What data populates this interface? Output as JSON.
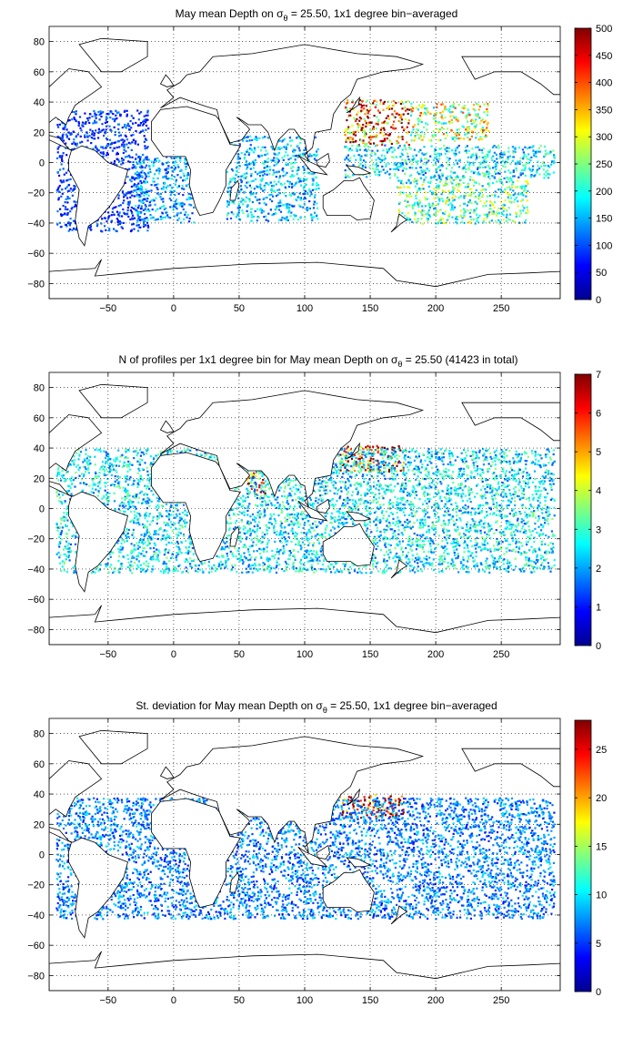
{
  "colorbar_palette": "jet",
  "continent_outline_color": "#000000",
  "background_color": "#ffffff",
  "chart_data": [
    {
      "type": "heatmap",
      "title": "May mean Depth on σ",
      "title_sub": "θ",
      "title_tail": " = 25.50, 1x1 degree bin−averaged",
      "xlabel": "",
      "ylabel": "",
      "xlim": [
        -95,
        295
      ],
      "ylim": [
        -90,
        90
      ],
      "xticks": [
        -50,
        0,
        50,
        100,
        150,
        200,
        250
      ],
      "xtick_labels": [
        "−50",
        "0",
        "50",
        "100",
        "150",
        "200",
        "250"
      ],
      "yticks": [
        80,
        60,
        40,
        20,
        0,
        -20,
        -40,
        -60,
        -80
      ],
      "ytick_labels": [
        "80",
        "60",
        "40",
        "20",
        "0",
        "−20",
        "−40",
        "−60",
        "−80"
      ],
      "grid": true,
      "colorbar": {
        "range": [
          0,
          500
        ],
        "ticks": [
          0,
          50,
          100,
          150,
          200,
          250,
          300,
          350,
          400,
          450,
          500
        ]
      },
      "field_regions": [
        {
          "lon": [
            130,
            180
          ],
          "lat": [
            12,
            42
          ],
          "value": 400
        },
        {
          "lon": [
            180,
            240
          ],
          "lat": [
            15,
            40
          ],
          "value": 280
        },
        {
          "lon": [
            130,
            290
          ],
          "lat": [
            -10,
            12
          ],
          "value": 180
        },
        {
          "lon": [
            170,
            270
          ],
          "lat": [
            -40,
            -10
          ],
          "value": 230
        },
        {
          "lon": [
            40,
            110
          ],
          "lat": [
            -38,
            18
          ],
          "value": 160
        },
        {
          "lon": [
            -90,
            -20
          ],
          "lat": [
            -45,
            35
          ],
          "value": 90
        },
        {
          "lon": [
            -30,
            15
          ],
          "lat": [
            -40,
            5
          ],
          "value": 140
        }
      ]
    },
    {
      "type": "heatmap",
      "title": "N of profiles per 1x1 degree bin for May mean Depth on σ",
      "title_sub": "θ",
      "title_tail": " = 25.50 (41423 in total)",
      "xlabel": "",
      "ylabel": "",
      "xlim": [
        -95,
        295
      ],
      "ylim": [
        -90,
        90
      ],
      "xticks": [
        -50,
        0,
        50,
        100,
        150,
        200,
        250
      ],
      "xtick_labels": [
        "−50",
        "0",
        "50",
        "100",
        "150",
        "200",
        "250"
      ],
      "yticks": [
        80,
        60,
        40,
        20,
        0,
        -20,
        -40,
        -60,
        -80
      ],
      "ytick_labels": [
        "80",
        "60",
        "40",
        "20",
        "0",
        "−20",
        "−40",
        "−60",
        "−80"
      ],
      "grid": true,
      "colorbar": {
        "range": [
          0,
          7
        ],
        "ticks": [
          0,
          1,
          2,
          3,
          4,
          5,
          6,
          7
        ]
      },
      "field_regions": [
        {
          "lon": [
            125,
            175
          ],
          "lat": [
            25,
            42
          ],
          "value": 6.5
        },
        {
          "lon": [
            55,
            70
          ],
          "lat": [
            10,
            25
          ],
          "value": 6
        },
        {
          "lon": [
            -90,
            290
          ],
          "lat": [
            -42,
            40
          ],
          "value": 2.5
        }
      ]
    },
    {
      "type": "heatmap",
      "title": "St. deviation for May mean Depth on σ",
      "title_sub": "θ",
      "title_tail": " = 25.50, 1x1 degree bin−averaged",
      "xlabel": "",
      "ylabel": "",
      "xlim": [
        -95,
        295
      ],
      "ylim": [
        -90,
        90
      ],
      "xticks": [
        -50,
        0,
        50,
        100,
        150,
        200,
        250
      ],
      "xtick_labels": [
        "−50",
        "0",
        "50",
        "100",
        "150",
        "200",
        "250"
      ],
      "yticks": [
        80,
        60,
        40,
        20,
        0,
        -20,
        -40,
        -60,
        -80
      ],
      "ytick_labels": [
        "80",
        "60",
        "40",
        "20",
        "0",
        "−20",
        "−40",
        "−60",
        "−80"
      ],
      "grid": true,
      "colorbar": {
        "range": [
          0,
          28
        ],
        "ticks": [
          0,
          5,
          10,
          15,
          20,
          25
        ]
      },
      "field_regions": [
        {
          "lon": [
            125,
            175
          ],
          "lat": [
            25,
            40
          ],
          "value": 26
        },
        {
          "lon": [
            -90,
            290
          ],
          "lat": [
            -42,
            38
          ],
          "value": 7
        }
      ]
    }
  ]
}
